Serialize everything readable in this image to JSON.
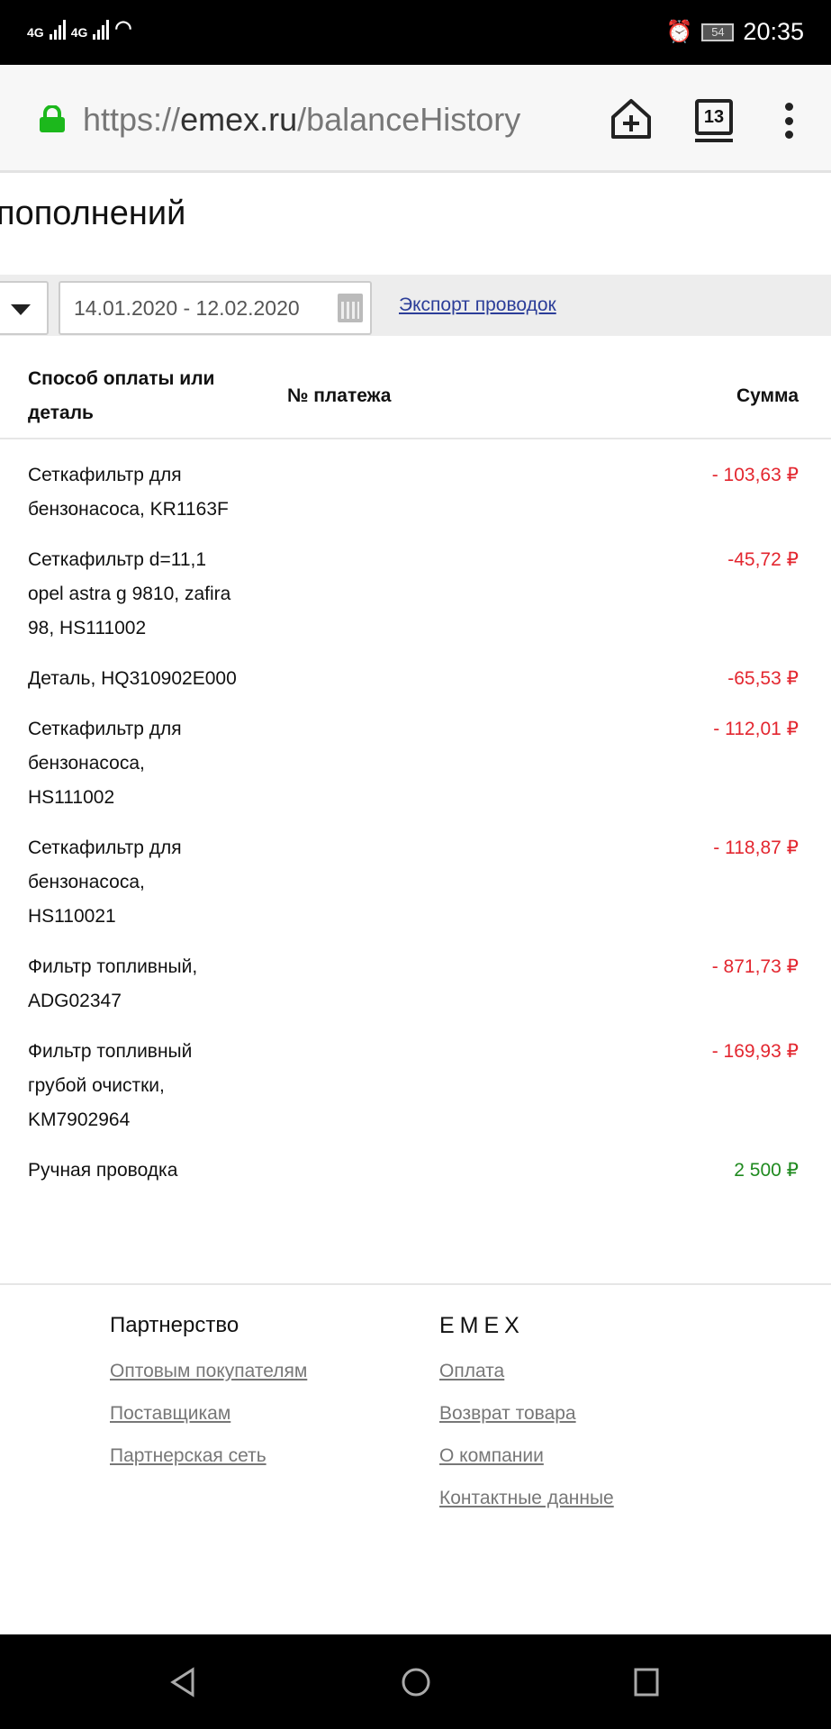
{
  "status_bar": {
    "network1": "4G",
    "network2": "4G",
    "battery": "54",
    "time": "20:35"
  },
  "browser": {
    "url_prefix": "https://",
    "url_host": "emex.ru",
    "url_path": "/balanceHistory",
    "tab_count": "13"
  },
  "page": {
    "title": "пополнений"
  },
  "filter": {
    "date_range": "14.01.2020 - 12.02.2020",
    "export_label": "Экспорт проводок"
  },
  "table": {
    "headers": {
      "method": "Способ оплаты или деталь",
      "method_lines": [
        "Способ оплаты или",
        "деталь"
      ],
      "payment_no": "№ платежа",
      "sum": "Сумма"
    },
    "rows": [
      {
        "lines": [
          "Сеткафильтр для",
          "бензонасоса, KR1163F"
        ],
        "amount": "- 103,63 ₽",
        "type": "debit"
      },
      {
        "lines": [
          "Сеткафильтр d=11,1",
          "opel astra g 9810, zafira",
          "98, HS111002"
        ],
        "amount": "-45,72 ₽",
        "type": "debit"
      },
      {
        "lines": [
          "Деталь, HQ310902E000"
        ],
        "amount": "-65,53 ₽",
        "type": "debit"
      },
      {
        "lines": [
          "Сеткафильтр для",
          "бензонасоса,",
          "HS111002"
        ],
        "amount": "- 112,01 ₽",
        "type": "debit"
      },
      {
        "lines": [
          "Сеткафильтр для",
          "бензонасоса,",
          "HS110021"
        ],
        "amount": "- 118,87 ₽",
        "type": "debit"
      },
      {
        "lines": [
          "Фильтр топливный,",
          "ADG02347"
        ],
        "amount": "- 871,73 ₽",
        "type": "debit"
      },
      {
        "lines": [
          "Фильтр топливный",
          "грубой очистки,",
          "KM7902964"
        ],
        "amount": "- 169,93 ₽",
        "type": "debit"
      },
      {
        "lines": [
          "Ручная проводка"
        ],
        "amount": "2 500 ₽",
        "type": "credit"
      }
    ]
  },
  "footer": {
    "partner": {
      "heading": "Партнерство",
      "links": [
        "Оптовым покупателям",
        "Поставщикам",
        "Партнерская сеть"
      ]
    },
    "emex": {
      "heading": "EMEX",
      "links": [
        "Оплата",
        "Возврат товара",
        "О компании",
        "Контактные данные"
      ]
    }
  },
  "colors": {
    "debit": "#e3262f",
    "credit": "#1f8a1f",
    "link": "#2c3e99",
    "lock": "#1cb81c"
  }
}
